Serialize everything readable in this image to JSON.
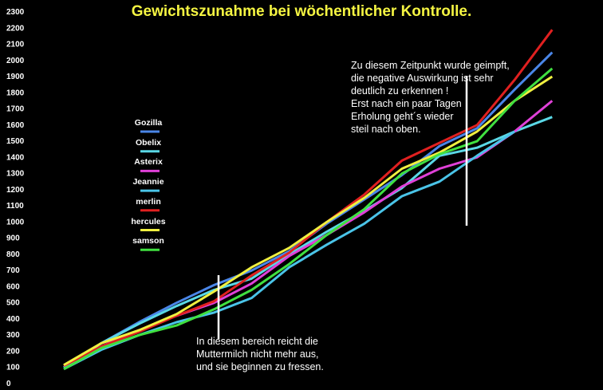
{
  "title": "Gewichtszunahme bei wöchentlicher Kontrolle.",
  "annotations": [
    {
      "id": "annotation-vaccination",
      "text": "Zu diesem Zeitpunkt wurde geimpft,\ndie negative Auswirkung ist sehr\ndeutlich zu erkennen !\nErst nach ein paar Tagen\nErholung geht´s wieder\nsteil nach oben."
    },
    {
      "id": "annotation-milk",
      "text": "In diesem bereich reicht die\nMuttermilch nicht mehr aus,\nund sie beginnen zu fressen."
    }
  ],
  "chart_data": {
    "type": "line",
    "title": "Gewichtszunahme bei wöchentlicher Kontrolle.",
    "xlabel": "",
    "ylabel": "",
    "ylim": [
      0,
      2300
    ],
    "yticks": [
      0,
      100,
      200,
      300,
      400,
      500,
      600,
      700,
      800,
      900,
      1000,
      1100,
      1200,
      1300,
      1400,
      1500,
      1600,
      1700,
      1800,
      1900,
      2000,
      2100,
      2200,
      2300
    ],
    "x": [
      0,
      1,
      2,
      3,
      4,
      5,
      6,
      7,
      8,
      9,
      10,
      11,
      12,
      13,
      14,
      15
    ],
    "grid": false,
    "legend_position": "left",
    "series": [
      {
        "name": "Gozilla",
        "color": "#4a86e8",
        "values": [
          100,
          250,
          380,
          500,
          610,
          700,
          820,
          990,
          1140,
          1290,
          1470,
          1580,
          1820,
          2050,
          null,
          null
        ]
      },
      {
        "name": "Obelix",
        "color": "#5ad8e6",
        "values": [
          100,
          250,
          370,
          480,
          580,
          650,
          800,
          940,
          1070,
          1210,
          1410,
          1460,
          1560,
          1650,
          null,
          null
        ]
      },
      {
        "name": "Asterix",
        "color": "#e040d8",
        "values": [
          110,
          230,
          330,
          420,
          500,
          620,
          790,
          920,
          1060,
          1220,
          1330,
          1400,
          1560,
          1750,
          null,
          null
        ]
      },
      {
        "name": "Jeannie",
        "color": "#4ac4e8",
        "values": [
          90,
          210,
          300,
          380,
          440,
          530,
          720,
          860,
          990,
          1160,
          1250,
          1410,
          1560,
          null,
          null,
          null
        ]
      },
      {
        "name": "merlin",
        "color": "#e02020",
        "values": [
          110,
          230,
          320,
          420,
          510,
          670,
          810,
          1000,
          1170,
          1380,
          1490,
          1600,
          1880,
          2190,
          null,
          null
        ]
      },
      {
        "name": "hercules",
        "color": "#f0f040",
        "values": [
          115,
          250,
          330,
          430,
          570,
          720,
          840,
          1000,
          1150,
          1330,
          1430,
          1560,
          1750,
          1900,
          null,
          null
        ]
      },
      {
        "name": "samson",
        "color": "#40e040",
        "values": [
          90,
          220,
          300,
          360,
          460,
          580,
          740,
          920,
          1080,
          1300,
          1420,
          1500,
          1750,
          1950,
          null,
          null
        ]
      }
    ]
  }
}
